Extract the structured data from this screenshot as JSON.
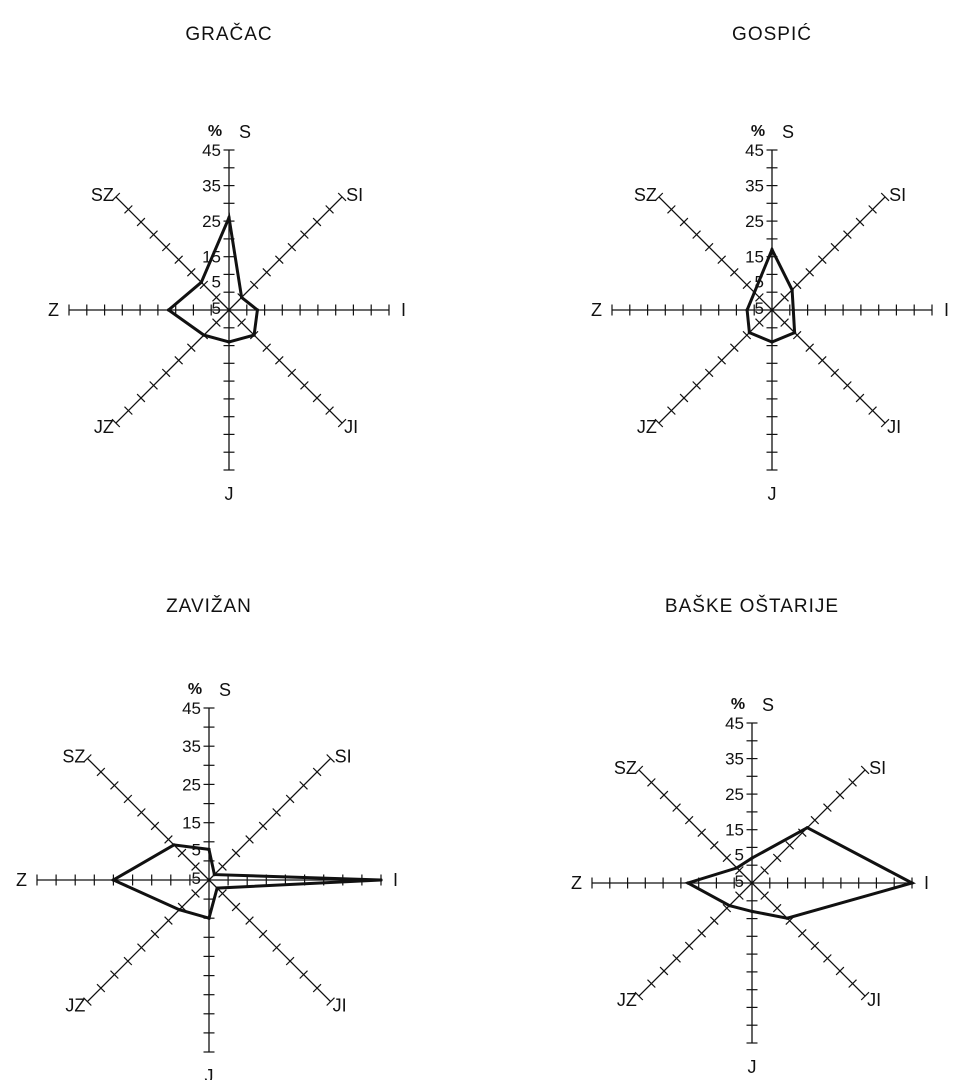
{
  "chart_data": [
    {
      "type": "radar",
      "title": "GRAČAC",
      "unit_label": "%",
      "directions": [
        "S",
        "SI",
        "I",
        "JI",
        "J",
        "JZ",
        "Z",
        "SZ"
      ],
      "r_ticks": [
        "45",
        "35",
        "25",
        "15",
        "5",
        "5"
      ],
      "rlim": [
        0,
        45
      ],
      "values": [
        26,
        5,
        8,
        10,
        9,
        10,
        17,
        11
      ]
    },
    {
      "type": "radar",
      "title": "GOSPIĆ",
      "unit_label": "%",
      "directions": [
        "S",
        "SI",
        "I",
        "JI",
        "J",
        "JZ",
        "Z",
        "SZ"
      ],
      "r_ticks": [
        "45",
        "35",
        "25",
        "15",
        "5",
        "5"
      ],
      "rlim": [
        0,
        45
      ],
      "values": [
        17,
        8,
        6,
        9,
        9,
        9,
        7,
        7
      ]
    },
    {
      "type": "radar",
      "title": "ZAVIŽAN",
      "unit_label": "%",
      "directions": [
        "S",
        "SI",
        "I",
        "JI",
        "J",
        "JZ",
        "Z",
        "SZ"
      ],
      "r_ticks": [
        "45",
        "35",
        "25",
        "15",
        "5",
        "5"
      ],
      "rlim": [
        0,
        45
      ],
      "values": [
        8,
        2,
        45,
        3,
        10,
        11,
        25,
        13
      ]
    },
    {
      "type": "radar",
      "title": "BAŠKE OŠTARIJE",
      "unit_label": "%",
      "directions": [
        "S",
        "SI",
        "I",
        "JI",
        "J",
        "JZ",
        "Z",
        "SZ"
      ],
      "r_ticks": [
        "45",
        "35",
        "25",
        "15",
        "5",
        "5"
      ],
      "rlim": [
        0,
        45
      ],
      "values": [
        7,
        22,
        45,
        14,
        8,
        9,
        18,
        6
      ]
    }
  ]
}
